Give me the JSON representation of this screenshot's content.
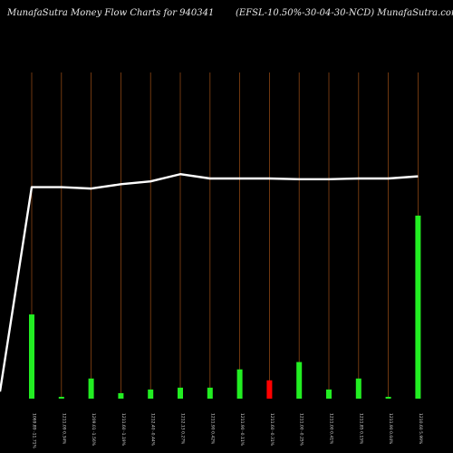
{
  "header": {
    "left": "MunafaSutra  Money Flow  Charts for 940341",
    "right": "(EFSL-10.50%-30-04-30-NCD) MunafaSutra.com"
  },
  "chart_data": {
    "type": "bar",
    "categories": [
      "1069.89 -11.71%",
      "1211.09 0.34%",
      "1209.01 -1.56%",
      "1211.60 -1.19%",
      "1212.40 -0.44%",
      "1212.13 0.27%",
      "1211.90 0.42%",
      "1211.90 -0.11%",
      "1211.60 -0.31%",
      "1211.00 -0.25%",
      "1211.00 0.41%",
      "1211.85 0.15%",
      "1211.90 0.04%",
      "1210.60 5.99%"
    ],
    "series": [
      {
        "values": [
          46,
          1,
          11,
          3,
          5,
          6,
          6,
          16,
          10,
          20,
          5,
          11,
          1,
          100
        ],
        "colors": [
          "#22ee22",
          "#22ee22",
          "#22ee22",
          "#22ee22",
          "#22ee22",
          "#22ee22",
          "#22ee22",
          "#22ee22",
          "#ff0000",
          "#22ee22",
          "#22ee22",
          "#22ee22",
          "#22ee22",
          "#22ee22"
        ]
      },
      {
        "type": "line",
        "values": [
          1212,
          1212,
          1211,
          1214,
          1216,
          1221,
          1218,
          1218,
          1218,
          1217.5,
          1217.5,
          1218,
          1218,
          1219.5
        ],
        "start_value": 1069.9,
        "color": "#ffffff"
      }
    ],
    "ylim_line": [
      1065,
      1235
    ],
    "ylim": [
      0,
      100
    ],
    "grid": "vertical lines at each bar, brown",
    "grid_color": "#8b4513",
    "background": "#000000"
  }
}
